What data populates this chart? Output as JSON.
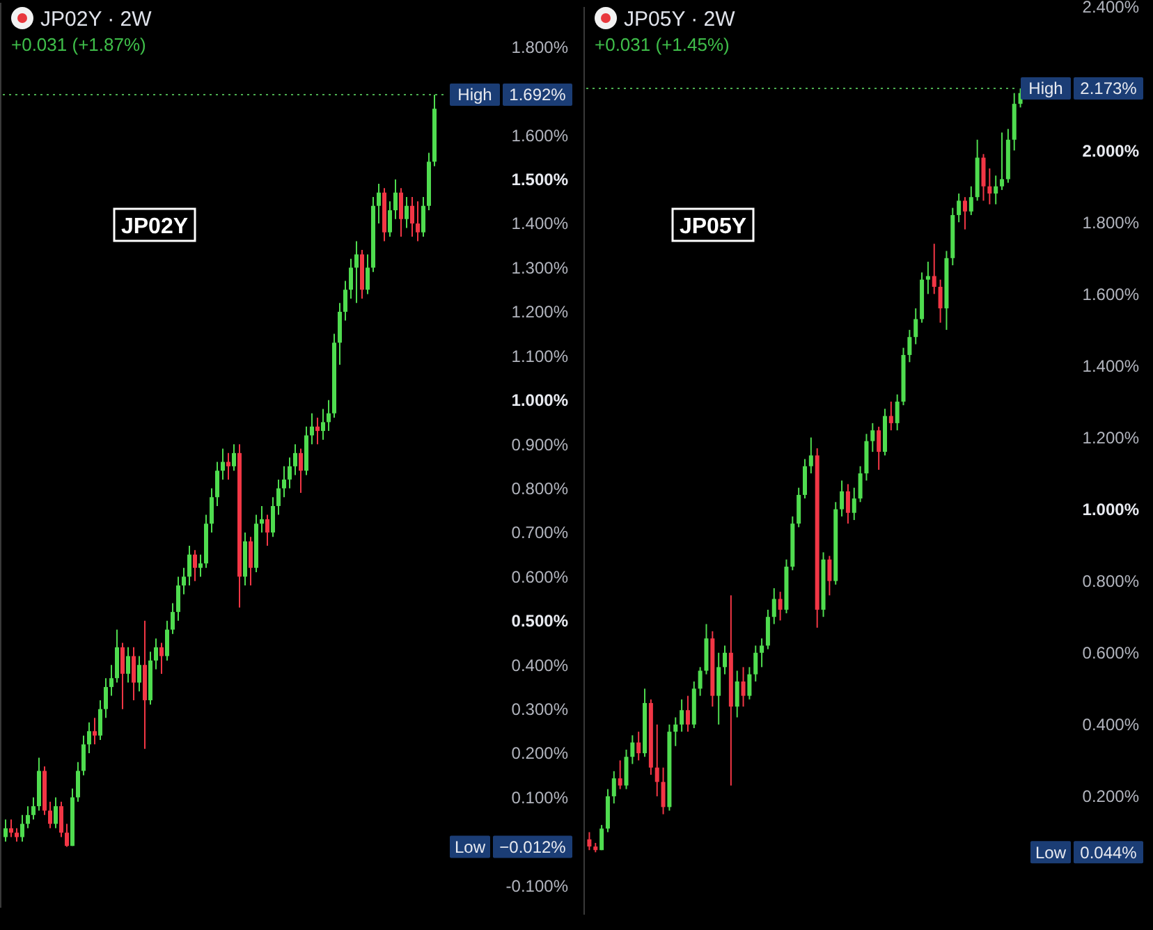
{
  "chart_data": [
    {
      "type": "candlestick",
      "title": "JP02Y · 2W",
      "subtitle": "+0.031 (+1.87%)",
      "tick_labels": "y",
      "annotations": [
        "JP02Y",
        "High",
        "1.692%",
        "Low",
        "−0.012%"
      ],
      "ref_lines": [
        {
          "axis": "y",
          "value": 1.692,
          "color": "#4caf50",
          "line_style": "dotted"
        }
      ],
      "ylim": [
        -0.15,
        1.9
      ],
      "yticks": [
        {
          "value": -0.1,
          "label": "-0.100%"
        },
        {
          "value": 0.1,
          "label": "0.100%"
        },
        {
          "value": 0.2,
          "label": "0.200%"
        },
        {
          "value": 0.3,
          "label": "0.300%"
        },
        {
          "value": 0.4,
          "label": "0.400%"
        },
        {
          "value": 0.5,
          "label": "0.500%"
        },
        {
          "value": 0.6,
          "label": "0.600%"
        },
        {
          "value": 0.7,
          "label": "0.700%"
        },
        {
          "value": 0.8,
          "label": "0.800%"
        },
        {
          "value": 0.9,
          "label": "0.900%"
        },
        {
          "value": 1.0,
          "label": "1.000%"
        },
        {
          "value": 1.1,
          "label": "1.100%"
        },
        {
          "value": 1.2,
          "label": "1.200%"
        },
        {
          "value": 1.3,
          "label": "1.300%"
        },
        {
          "value": 1.4,
          "label": "1.400%"
        },
        {
          "value": 1.5,
          "label": "1.500%"
        },
        {
          "value": 1.6,
          "label": "1.600%"
        },
        {
          "value": 1.8,
          "label": "1.800%"
        }
      ],
      "categories": [
        null,
        null,
        null,
        null,
        null,
        null,
        null,
        null,
        null,
        null,
        null,
        null,
        null,
        null,
        null,
        null,
        null,
        null,
        null,
        null,
        null,
        null,
        null,
        null,
        null,
        null,
        null,
        null,
        null,
        null,
        null,
        null,
        null,
        null,
        null,
        null,
        null,
        null,
        null,
        null,
        null,
        null,
        null,
        null,
        null,
        null,
        null,
        null,
        null,
        null,
        null,
        null,
        null,
        null,
        null,
        null,
        null,
        null,
        null,
        null,
        null,
        null,
        null,
        null,
        null,
        null,
        null,
        null,
        null,
        null,
        null,
        null,
        null,
        null,
        null,
        null,
        null,
        null
      ],
      "ohlc": [
        [
          0.01,
          0.05,
          0.0,
          0.03
        ],
        [
          0.03,
          0.05,
          0.01,
          0.02
        ],
        [
          0.02,
          0.03,
          0.0,
          0.01
        ],
        [
          0.01,
          0.06,
          0.0,
          0.04
        ],
        [
          0.04,
          0.08,
          0.03,
          0.06
        ],
        [
          0.06,
          0.1,
          0.05,
          0.08
        ],
        [
          0.08,
          0.19,
          0.07,
          0.16
        ],
        [
          0.16,
          0.17,
          0.06,
          0.07
        ],
        [
          0.07,
          0.09,
          0.03,
          0.04
        ],
        [
          0.04,
          0.1,
          0.03,
          0.08
        ],
        [
          0.08,
          0.09,
          0.01,
          0.02
        ],
        [
          0.02,
          0.04,
          -0.012,
          -0.01
        ],
        [
          -0.01,
          0.12,
          -0.01,
          0.1
        ],
        [
          0.1,
          0.18,
          0.09,
          0.16
        ],
        [
          0.16,
          0.24,
          0.15,
          0.22
        ],
        [
          0.22,
          0.27,
          0.2,
          0.25
        ],
        [
          0.25,
          0.28,
          0.22,
          0.24
        ],
        [
          0.24,
          0.32,
          0.23,
          0.3
        ],
        [
          0.3,
          0.37,
          0.28,
          0.35
        ],
        [
          0.35,
          0.4,
          0.33,
          0.37
        ],
        [
          0.37,
          0.48,
          0.36,
          0.44
        ],
        [
          0.44,
          0.45,
          0.3,
          0.38
        ],
        [
          0.38,
          0.44,
          0.36,
          0.42
        ],
        [
          0.42,
          0.44,
          0.32,
          0.36
        ],
        [
          0.36,
          0.42,
          0.34,
          0.4
        ],
        [
          0.4,
          0.5,
          0.21,
          0.32
        ],
        [
          0.32,
          0.43,
          0.31,
          0.41
        ],
        [
          0.41,
          0.46,
          0.39,
          0.44
        ],
        [
          0.44,
          0.45,
          0.38,
          0.42
        ],
        [
          0.42,
          0.5,
          0.41,
          0.48
        ],
        [
          0.48,
          0.54,
          0.47,
          0.52
        ],
        [
          0.52,
          0.6,
          0.5,
          0.58
        ],
        [
          0.58,
          0.62,
          0.56,
          0.6
        ],
        [
          0.6,
          0.67,
          0.58,
          0.65
        ],
        [
          0.65,
          0.66,
          0.59,
          0.62
        ],
        [
          0.62,
          0.65,
          0.6,
          0.63
        ],
        [
          0.63,
          0.74,
          0.62,
          0.72
        ],
        [
          0.72,
          0.8,
          0.7,
          0.78
        ],
        [
          0.78,
          0.86,
          0.76,
          0.84
        ],
        [
          0.84,
          0.89,
          0.82,
          0.86
        ],
        [
          0.86,
          0.88,
          0.82,
          0.85
        ],
        [
          0.85,
          0.9,
          0.84,
          0.88
        ],
        [
          0.88,
          0.9,
          0.53,
          0.6
        ],
        [
          0.6,
          0.7,
          0.58,
          0.68
        ],
        [
          0.68,
          0.69,
          0.58,
          0.62
        ],
        [
          0.62,
          0.74,
          0.61,
          0.72
        ],
        [
          0.72,
          0.76,
          0.7,
          0.73
        ],
        [
          0.73,
          0.74,
          0.67,
          0.7
        ],
        [
          0.7,
          0.78,
          0.69,
          0.76
        ],
        [
          0.76,
          0.82,
          0.74,
          0.8
        ],
        [
          0.8,
          0.85,
          0.78,
          0.82
        ],
        [
          0.82,
          0.87,
          0.8,
          0.85
        ],
        [
          0.85,
          0.9,
          0.83,
          0.88
        ],
        [
          0.88,
          0.89,
          0.79,
          0.84
        ],
        [
          0.84,
          0.94,
          0.83,
          0.92
        ],
        [
          0.92,
          0.97,
          0.9,
          0.94
        ],
        [
          0.94,
          0.96,
          0.9,
          0.93
        ],
        [
          0.93,
          0.98,
          0.91,
          0.95
        ],
        [
          0.95,
          1.0,
          0.93,
          0.97
        ],
        [
          0.97,
          1.15,
          0.96,
          1.13
        ],
        [
          1.13,
          1.22,
          1.08,
          1.2
        ],
        [
          1.2,
          1.27,
          1.18,
          1.25
        ],
        [
          1.25,
          1.32,
          1.23,
          1.3
        ],
        [
          1.3,
          1.36,
          1.22,
          1.33
        ],
        [
          1.33,
          1.34,
          1.23,
          1.25
        ],
        [
          1.25,
          1.33,
          1.24,
          1.3
        ],
        [
          1.3,
          1.46,
          1.29,
          1.44
        ],
        [
          1.44,
          1.49,
          1.4,
          1.47
        ],
        [
          1.47,
          1.48,
          1.36,
          1.38
        ],
        [
          1.38,
          1.45,
          1.37,
          1.43
        ],
        [
          1.43,
          1.5,
          1.41,
          1.47
        ],
        [
          1.47,
          1.48,
          1.37,
          1.41
        ],
        [
          1.41,
          1.46,
          1.39,
          1.44
        ],
        [
          1.44,
          1.46,
          1.37,
          1.4
        ],
        [
          1.4,
          1.45,
          1.36,
          1.38
        ],
        [
          1.38,
          1.46,
          1.37,
          1.44
        ],
        [
          1.44,
          1.56,
          1.43,
          1.54
        ],
        [
          1.54,
          1.692,
          1.53,
          1.66
        ]
      ]
    },
    {
      "type": "candlestick",
      "title": "JP05Y · 2W",
      "subtitle": "+0.031 (+1.45%)",
      "tick_labels": "y",
      "annotations": [
        "JP05Y",
        "High",
        "2.173%",
        "Low",
        "0.044%"
      ],
      "ref_lines": [
        {
          "axis": "y",
          "value": 2.173,
          "color": "#4caf50",
          "line_style": "dotted"
        }
      ],
      "ylim": [
        -0.13,
        2.4
      ],
      "yticks": [
        {
          "value": 0.2,
          "label": "0.200%"
        },
        {
          "value": 0.4,
          "label": "0.400%"
        },
        {
          "value": 0.6,
          "label": "0.600%"
        },
        {
          "value": 0.8,
          "label": "0.800%"
        },
        {
          "value": 1.0,
          "label": "1.000%"
        },
        {
          "value": 1.2,
          "label": "1.200%"
        },
        {
          "value": 1.4,
          "label": "1.400%"
        },
        {
          "value": 1.6,
          "label": "1.600%"
        },
        {
          "value": 1.8,
          "label": "1.800%"
        },
        {
          "value": 2.0,
          "label": "2.000%"
        },
        {
          "value": 2.4,
          "label": "2.400%"
        }
      ],
      "categories": [
        null,
        null,
        null,
        null,
        null,
        null,
        null,
        null,
        null,
        null,
        null,
        null,
        null,
        null,
        null,
        null,
        null,
        null,
        null,
        null,
        null,
        null,
        null,
        null,
        null,
        null,
        null,
        null,
        null,
        null,
        null,
        null,
        null,
        null,
        null,
        null,
        null,
        null,
        null,
        null,
        null,
        null,
        null,
        null,
        null,
        null,
        null,
        null,
        null,
        null,
        null,
        null,
        null,
        null,
        null,
        null,
        null,
        null,
        null,
        null,
        null,
        null,
        null,
        null,
        null,
        null,
        null,
        null,
        null,
        null,
        null
      ],
      "ohlc": [
        [
          0.08,
          0.1,
          0.05,
          0.06
        ],
        [
          0.06,
          0.07,
          0.044,
          0.05
        ],
        [
          0.05,
          0.12,
          0.05,
          0.11
        ],
        [
          0.11,
          0.22,
          0.1,
          0.2
        ],
        [
          0.2,
          0.27,
          0.18,
          0.25
        ],
        [
          0.25,
          0.3,
          0.22,
          0.23
        ],
        [
          0.23,
          0.33,
          0.22,
          0.31
        ],
        [
          0.31,
          0.37,
          0.29,
          0.35
        ],
        [
          0.35,
          0.38,
          0.3,
          0.32
        ],
        [
          0.32,
          0.5,
          0.31,
          0.46
        ],
        [
          0.46,
          0.47,
          0.26,
          0.28
        ],
        [
          0.28,
          0.4,
          0.2,
          0.24
        ],
        [
          0.24,
          0.28,
          0.15,
          0.17
        ],
        [
          0.17,
          0.4,
          0.16,
          0.38
        ],
        [
          0.38,
          0.42,
          0.34,
          0.4
        ],
        [
          0.4,
          0.47,
          0.38,
          0.44
        ],
        [
          0.44,
          0.48,
          0.38,
          0.4
        ],
        [
          0.4,
          0.52,
          0.39,
          0.5
        ],
        [
          0.5,
          0.56,
          0.48,
          0.55
        ],
        [
          0.55,
          0.68,
          0.54,
          0.64
        ],
        [
          0.64,
          0.66,
          0.45,
          0.48
        ],
        [
          0.48,
          0.6,
          0.4,
          0.56
        ],
        [
          0.56,
          0.62,
          0.54,
          0.6
        ],
        [
          0.6,
          0.76,
          0.23,
          0.45
        ],
        [
          0.45,
          0.55,
          0.42,
          0.52
        ],
        [
          0.52,
          0.56,
          0.45,
          0.48
        ],
        [
          0.48,
          0.56,
          0.47,
          0.54
        ],
        [
          0.54,
          0.62,
          0.52,
          0.6
        ],
        [
          0.6,
          0.64,
          0.56,
          0.62
        ],
        [
          0.62,
          0.72,
          0.61,
          0.7
        ],
        [
          0.7,
          0.78,
          0.68,
          0.75
        ],
        [
          0.75,
          0.77,
          0.69,
          0.72
        ],
        [
          0.72,
          0.86,
          0.71,
          0.84
        ],
        [
          0.84,
          0.98,
          0.83,
          0.96
        ],
        [
          0.96,
          1.06,
          0.95,
          1.04
        ],
        [
          1.04,
          1.14,
          1.03,
          1.12
        ],
        [
          1.12,
          1.2,
          1.1,
          1.15
        ],
        [
          1.15,
          1.17,
          0.67,
          0.72
        ],
        [
          0.72,
          0.88,
          0.7,
          0.86
        ],
        [
          0.86,
          0.87,
          0.76,
          0.8
        ],
        [
          0.8,
          1.02,
          0.79,
          1.0
        ],
        [
          1.0,
          1.08,
          0.98,
          1.05
        ],
        [
          1.05,
          1.07,
          0.96,
          0.99
        ],
        [
          0.99,
          1.06,
          0.97,
          1.03
        ],
        [
          1.03,
          1.12,
          1.02,
          1.1
        ],
        [
          1.1,
          1.21,
          1.08,
          1.19
        ],
        [
          1.19,
          1.24,
          1.16,
          1.22
        ],
        [
          1.22,
          1.23,
          1.11,
          1.16
        ],
        [
          1.16,
          1.28,
          1.15,
          1.26
        ],
        [
          1.26,
          1.3,
          1.22,
          1.24
        ],
        [
          1.24,
          1.32,
          1.22,
          1.3
        ],
        [
          1.3,
          1.45,
          1.29,
          1.43
        ],
        [
          1.43,
          1.5,
          1.41,
          1.48
        ],
        [
          1.48,
          1.56,
          1.46,
          1.53
        ],
        [
          1.53,
          1.66,
          1.52,
          1.64
        ],
        [
          1.64,
          1.69,
          1.6,
          1.65
        ],
        [
          1.65,
          1.74,
          1.6,
          1.62
        ],
        [
          1.62,
          1.64,
          1.52,
          1.56
        ],
        [
          1.56,
          1.72,
          1.5,
          1.7
        ],
        [
          1.7,
          1.84,
          1.68,
          1.82
        ],
        [
          1.82,
          1.88,
          1.8,
          1.86
        ],
        [
          1.86,
          1.87,
          1.78,
          1.83
        ],
        [
          1.83,
          1.9,
          1.82,
          1.87
        ],
        [
          1.87,
          2.03,
          1.86,
          1.98
        ],
        [
          1.98,
          1.99,
          1.86,
          1.9
        ],
        [
          1.9,
          1.95,
          1.85,
          1.88
        ],
        [
          1.88,
          1.93,
          1.85,
          1.9
        ],
        [
          1.9,
          2.05,
          1.89,
          1.92
        ],
        [
          1.92,
          2.06,
          1.91,
          2.03
        ],
        [
          2.03,
          2.16,
          2.0,
          2.13
        ],
        [
          2.13,
          2.173,
          2.12,
          2.16
        ]
      ]
    }
  ]
}
